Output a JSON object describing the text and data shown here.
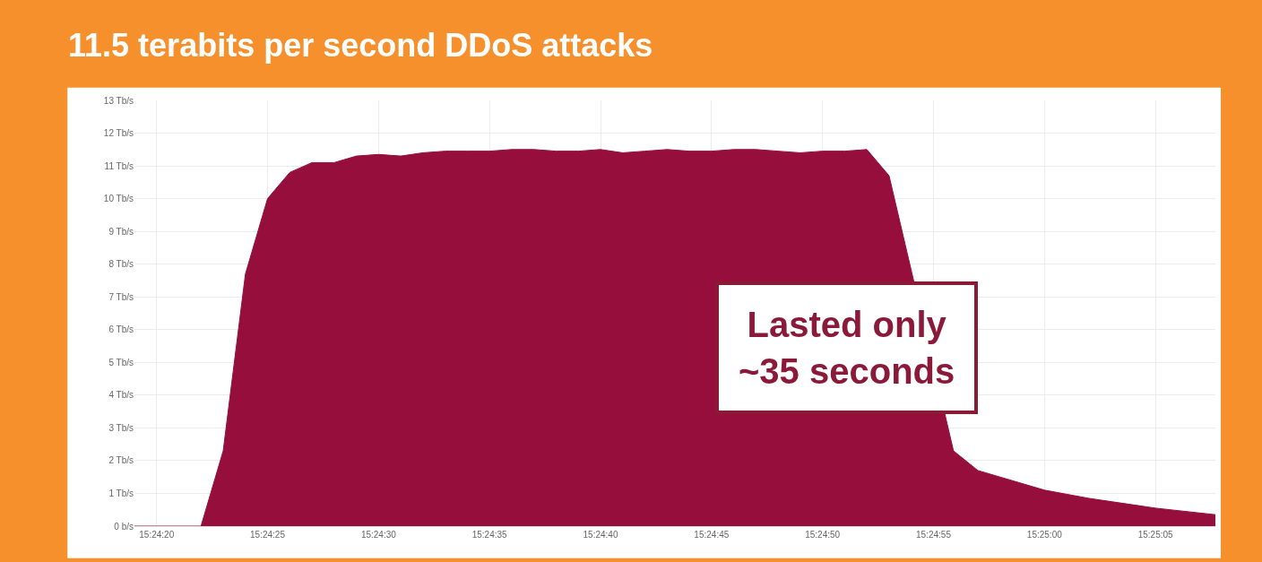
{
  "chart_data": {
    "type": "area",
    "title": "11.5 terabits per second DDoS attacks",
    "x": [
      15.405278,
      15.406111,
      15.406389,
      15.406667,
      15.406944,
      15.407222,
      15.4075,
      15.407778,
      15.408056,
      15.408333,
      15.408611,
      15.408889,
      15.409167,
      15.409444,
      15.409722,
      15.41,
      15.410278,
      15.410556,
      15.410833,
      15.411111,
      15.411389,
      15.411667,
      15.411944,
      15.412222,
      15.4125,
      15.412778,
      15.413056,
      15.413333,
      15.413611,
      15.413889,
      15.414167,
      15.414444,
      15.414722,
      15.415528,
      15.415833,
      15.416111,
      15.416667,
      15.417222,
      15.418056,
      15.418806
    ],
    "series": [
      {
        "color": "#960e3c",
        "values": [
          0,
          0,
          2.3,
          7.7,
          10.0,
          10.8,
          11.1,
          11.1,
          11.3,
          11.35,
          11.3,
          11.4,
          11.45,
          11.45,
          11.45,
          11.5,
          11.5,
          11.45,
          11.45,
          11.5,
          11.4,
          11.45,
          11.5,
          11.45,
          11.45,
          11.5,
          11.5,
          11.45,
          11.4,
          11.45,
          11.45,
          11.5,
          10.7,
          2.3,
          1.7,
          1.5,
          1.1,
          0.85,
          0.55,
          0.35
        ]
      }
    ],
    "xlim": [
      15.405278,
      15.418806
    ],
    "xticks": [
      {
        "value": 15.405556,
        "label": "15:24:20"
      },
      {
        "value": 15.406944,
        "label": "15:24:25"
      },
      {
        "value": 15.408333,
        "label": "15:24:30"
      },
      {
        "value": 15.409722,
        "label": "15:24:35"
      },
      {
        "value": 15.411111,
        "label": "15:24:40"
      },
      {
        "value": 15.4125,
        "label": "15:24:45"
      },
      {
        "value": 15.413889,
        "label": "15:24:50"
      },
      {
        "value": 15.415278,
        "label": "15:24:55"
      },
      {
        "value": 15.416667,
        "label": "15:25:00"
      },
      {
        "value": 15.418056,
        "label": "15:25:05"
      }
    ],
    "ylim": [
      0,
      13
    ],
    "yticks": [
      {
        "value": 0,
        "label": "0 b/s"
      },
      {
        "value": 1,
        "label": "1 Tb/s"
      },
      {
        "value": 2,
        "label": "2 Tb/s"
      },
      {
        "value": 3,
        "label": "3 Tb/s"
      },
      {
        "value": 4,
        "label": "4 Tb/s"
      },
      {
        "value": 5,
        "label": "5 Tb/s"
      },
      {
        "value": 6,
        "label": "6 Tb/s"
      },
      {
        "value": 7,
        "label": "7 Tb/s"
      },
      {
        "value": 8,
        "label": "8 Tb/s"
      },
      {
        "value": 9,
        "label": "9 Tb/s"
      },
      {
        "value": 10,
        "label": "10 Tb/s"
      },
      {
        "value": 11,
        "label": "11 Tb/s"
      },
      {
        "value": 12,
        "label": "12 Tb/s"
      },
      {
        "value": 13,
        "label": "13 Tb/s"
      }
    ],
    "annotations": [
      "Lasted only\n~35 seconds"
    ],
    "grid": true
  }
}
